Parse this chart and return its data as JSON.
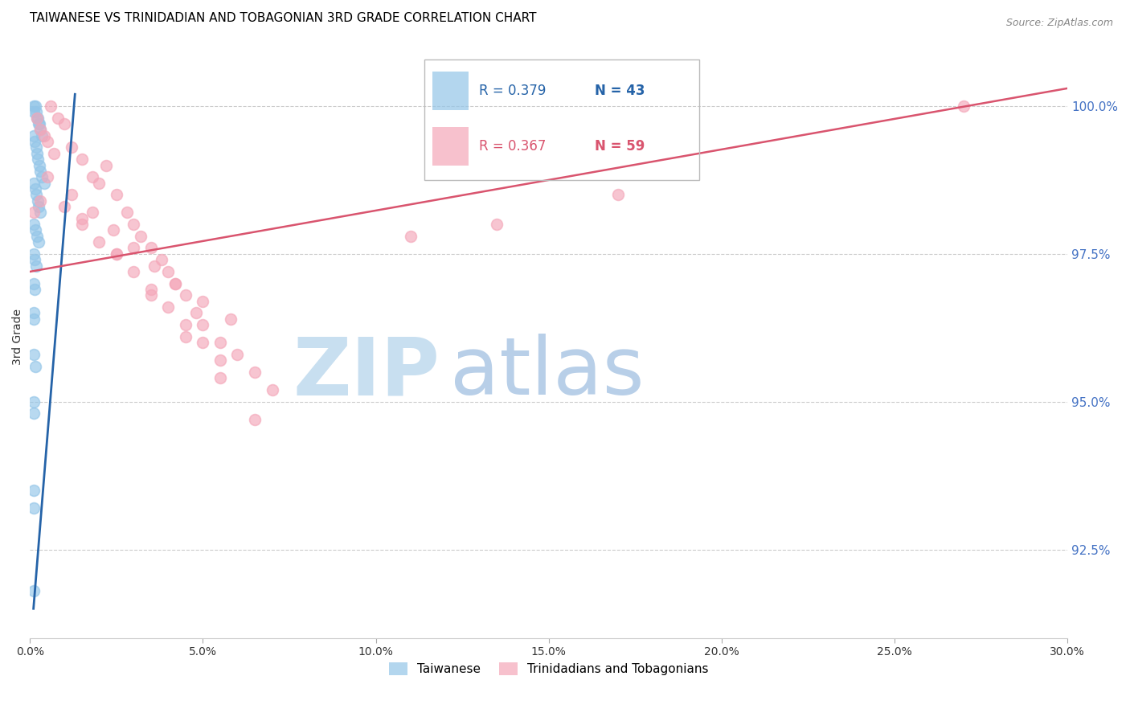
{
  "title": "TAIWANESE VS TRINIDADIAN AND TOBAGONIAN 3RD GRADE CORRELATION CHART",
  "source": "Source: ZipAtlas.com",
  "ylabel": "3rd Grade",
  "xlim": [
    0.0,
    30.0
  ],
  "ylim": [
    91.0,
    101.2
  ],
  "yticks": [
    92.5,
    95.0,
    97.5,
    100.0
  ],
  "xticks": [
    0.0,
    5.0,
    10.0,
    15.0,
    20.0,
    25.0,
    30.0
  ],
  "blue_label": "Taiwanese",
  "pink_label": "Trinidadians and Tobagonians",
  "blue_R": "0.379",
  "blue_N": "43",
  "pink_R": "0.367",
  "pink_N": "59",
  "blue_color": "#93c5e8",
  "pink_color": "#f4a7b9",
  "blue_line_color": "#2563a8",
  "pink_line_color": "#d9546e",
  "watermark_zip_color": "#c8dff0",
  "watermark_atlas_color": "#b8cfe8",
  "title_fontsize": 11,
  "source_fontsize": 9,
  "blue_scatter_x": [
    0.1,
    0.15,
    0.12,
    0.18,
    0.2,
    0.25,
    0.22,
    0.3,
    0.28,
    0.35,
    0.1,
    0.13,
    0.17,
    0.2,
    0.23,
    0.27,
    0.3,
    0.35,
    0.4,
    0.1,
    0.15,
    0.18,
    0.22,
    0.25,
    0.3,
    0.12,
    0.16,
    0.2,
    0.24,
    0.1,
    0.14,
    0.18,
    0.1,
    0.13,
    0.1,
    0.12,
    0.1,
    0.15,
    0.1,
    0.12,
    0.1,
    0.12,
    0.1
  ],
  "blue_scatter_y": [
    100.0,
    100.0,
    99.9,
    99.9,
    99.8,
    99.7,
    99.8,
    99.6,
    99.7,
    99.5,
    99.5,
    99.4,
    99.3,
    99.2,
    99.1,
    99.0,
    98.9,
    98.8,
    98.7,
    98.7,
    98.6,
    98.5,
    98.4,
    98.3,
    98.2,
    98.0,
    97.9,
    97.8,
    97.7,
    97.5,
    97.4,
    97.3,
    97.0,
    96.9,
    96.5,
    96.4,
    95.8,
    95.6,
    95.0,
    94.8,
    93.5,
    93.2,
    91.8
  ],
  "pink_scatter_x": [
    0.1,
    0.2,
    0.3,
    0.4,
    0.5,
    0.6,
    0.8,
    1.0,
    1.2,
    1.5,
    1.8,
    2.0,
    2.2,
    2.5,
    2.8,
    3.0,
    3.2,
    3.5,
    3.8,
    4.0,
    4.2,
    4.5,
    4.8,
    5.0,
    5.5,
    6.0,
    6.5,
    7.0,
    1.0,
    1.5,
    2.0,
    2.5,
    3.0,
    3.5,
    4.0,
    4.5,
    5.0,
    5.5,
    1.2,
    1.8,
    2.4,
    3.0,
    3.6,
    4.2,
    5.0,
    5.8,
    0.5,
    1.5,
    2.5,
    3.5,
    4.5,
    5.5,
    6.5,
    11.0,
    13.5,
    17.0,
    27.0,
    0.3,
    0.7
  ],
  "pink_scatter_y": [
    98.2,
    99.8,
    99.6,
    99.5,
    99.4,
    100.0,
    99.8,
    99.7,
    99.3,
    99.1,
    98.8,
    98.7,
    99.0,
    98.5,
    98.2,
    98.0,
    97.8,
    97.6,
    97.4,
    97.2,
    97.0,
    96.8,
    96.5,
    96.3,
    96.0,
    95.8,
    95.5,
    95.2,
    98.3,
    98.0,
    97.7,
    97.5,
    97.2,
    96.9,
    96.6,
    96.3,
    96.0,
    95.7,
    98.5,
    98.2,
    97.9,
    97.6,
    97.3,
    97.0,
    96.7,
    96.4,
    98.8,
    98.1,
    97.5,
    96.8,
    96.1,
    95.4,
    94.7,
    97.8,
    98.0,
    98.5,
    100.0,
    98.4,
    99.2
  ],
  "blue_line_x": [
    0.1,
    1.3
  ],
  "blue_line_y": [
    91.5,
    100.2
  ],
  "pink_line_x": [
    0.0,
    30.0
  ],
  "pink_line_y": [
    97.2,
    100.3
  ]
}
